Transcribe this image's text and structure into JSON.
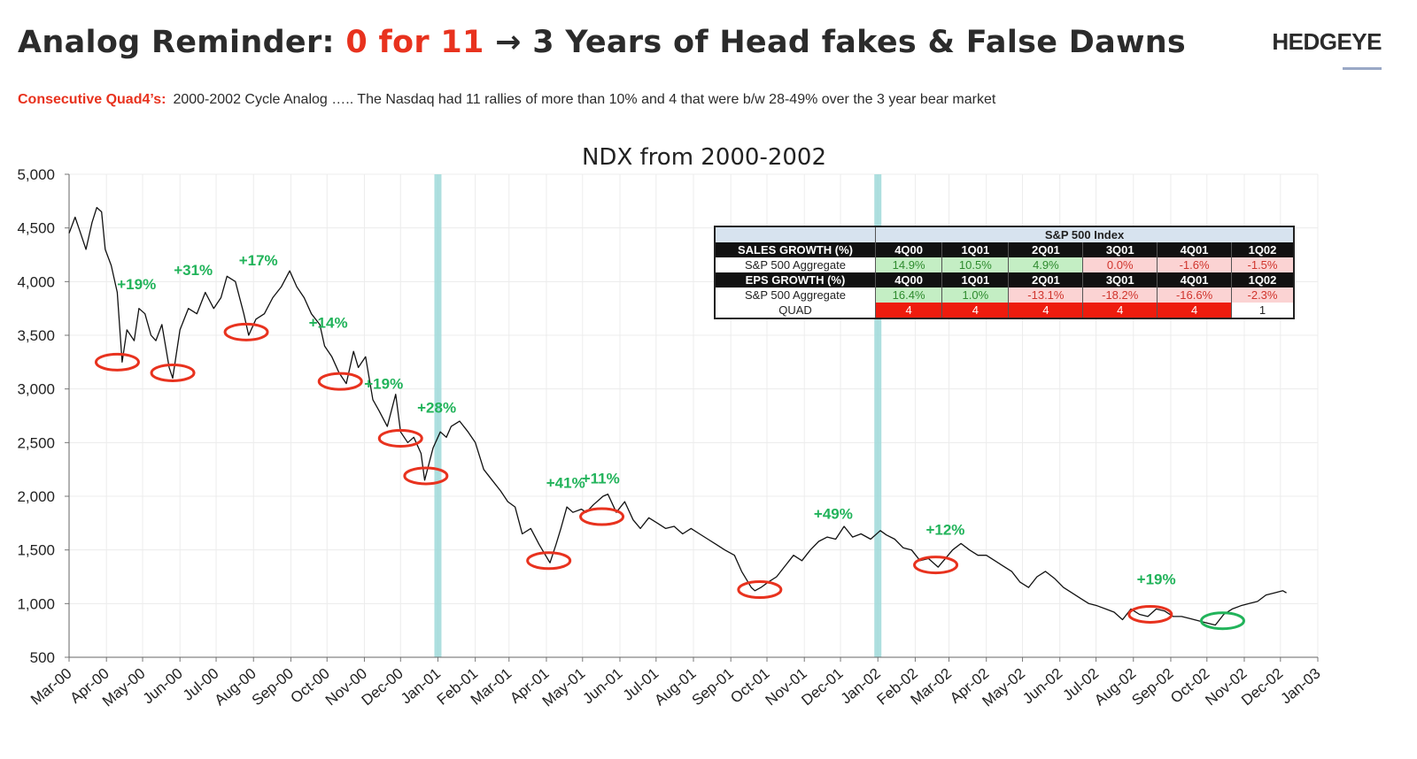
{
  "header": {
    "title_prefix": "Analog Reminder: ",
    "title_highlight": "0 for 11",
    "title_suffix": " → 3 Years of Head fakes & False Dawns",
    "logo": "HEDGEYE",
    "subtitle_label": "Consecutive Quad4’s:",
    "subtitle_text": "2000-2002 Cycle Analog ….. The Nasdaq had 11 rallies of more than 10% and 4 that were b/w 28-49% over the 3 year bear market"
  },
  "colors": {
    "rally_green": "#21b35a",
    "trough_red": "#e8321e",
    "final_trough_green": "#21b35a",
    "quarter_band": "#9fd9d9",
    "positive_cell": "#c4eec4",
    "negative_cell": "#fbd3d3",
    "quad4_cell": "#ee1c0e"
  },
  "chart_data": {
    "type": "line",
    "title": "NDX from 2000-2002",
    "xlabel": "",
    "ylabel": "",
    "ylim": [
      500,
      5000
    ],
    "yticks": [
      "500",
      "1,000",
      "1,500",
      "2,000",
      "2,500",
      "3,000",
      "3,500",
      "4,000",
      "4,500",
      "5,000"
    ],
    "xticks": [
      "Mar-00",
      "Apr-00",
      "May-00",
      "Jun-00",
      "Jul-00",
      "Aug-00",
      "Sep-00",
      "Oct-00",
      "Nov-00",
      "Dec-00",
      "Jan-01",
      "Feb-01",
      "Mar-01",
      "Apr-01",
      "May-01",
      "Jun-01",
      "Jul-01",
      "Aug-01",
      "Sep-01",
      "Oct-01",
      "Nov-01",
      "Dec-01",
      "Jan-02",
      "Feb-02",
      "Mar-02",
      "Apr-02",
      "May-02",
      "Jun-02",
      "Jul-02",
      "Aug-02",
      "Sep-02",
      "Oct-02",
      "Nov-02",
      "Dec-02",
      "Jan-03"
    ],
    "grid": true,
    "series": [
      {
        "points": [
          [
            "2000-03-01",
            4450
          ],
          [
            "2000-03-06",
            4600
          ],
          [
            "2000-03-10",
            4470
          ],
          [
            "2000-03-15",
            4300
          ],
          [
            "2000-03-20",
            4550
          ],
          [
            "2000-03-24",
            4690
          ],
          [
            "2000-03-28",
            4650
          ],
          [
            "2000-03-31",
            4300
          ],
          [
            "2000-04-05",
            4150
          ],
          [
            "2000-04-10",
            3900
          ],
          [
            "2000-04-14",
            3250
          ],
          [
            "2000-04-18",
            3550
          ],
          [
            "2000-04-24",
            3450
          ],
          [
            "2000-04-28",
            3750
          ],
          [
            "2000-05-03",
            3700
          ],
          [
            "2000-05-08",
            3500
          ],
          [
            "2000-05-12",
            3450
          ],
          [
            "2000-05-17",
            3600
          ],
          [
            "2000-05-23",
            3200
          ],
          [
            "2000-05-26",
            3100
          ],
          [
            "2000-06-01",
            3550
          ],
          [
            "2000-06-08",
            3750
          ],
          [
            "2000-06-15",
            3700
          ],
          [
            "2000-06-22",
            3900
          ],
          [
            "2000-06-29",
            3750
          ],
          [
            "2000-07-05",
            3850
          ],
          [
            "2000-07-10",
            4050
          ],
          [
            "2000-07-17",
            4000
          ],
          [
            "2000-07-24",
            3700
          ],
          [
            "2000-07-28",
            3500
          ],
          [
            "2000-08-03",
            3650
          ],
          [
            "2000-08-10",
            3700
          ],
          [
            "2000-08-17",
            3850
          ],
          [
            "2000-08-24",
            3950
          ],
          [
            "2000-08-31",
            4100
          ],
          [
            "2000-09-06",
            3950
          ],
          [
            "2000-09-12",
            3850
          ],
          [
            "2000-09-18",
            3700
          ],
          [
            "2000-09-25",
            3600
          ],
          [
            "2000-09-29",
            3400
          ],
          [
            "2000-10-05",
            3300
          ],
          [
            "2000-10-11",
            3150
          ],
          [
            "2000-10-17",
            3050
          ],
          [
            "2000-10-23",
            3350
          ],
          [
            "2000-10-27",
            3200
          ],
          [
            "2000-11-02",
            3300
          ],
          [
            "2000-11-08",
            2900
          ],
          [
            "2000-11-13",
            2800
          ],
          [
            "2000-11-20",
            2650
          ],
          [
            "2000-11-27",
            2950
          ],
          [
            "2000-12-01",
            2600
          ],
          [
            "2000-12-07",
            2500
          ],
          [
            "2000-12-12",
            2550
          ],
          [
            "2000-12-18",
            2400
          ],
          [
            "2000-12-21",
            2150
          ],
          [
            "2000-12-28",
            2450
          ],
          [
            "2001-01-03",
            2600
          ],
          [
            "2001-01-08",
            2550
          ],
          [
            "2001-01-12",
            2650
          ],
          [
            "2001-01-19",
            2700
          ],
          [
            "2001-01-26",
            2600
          ],
          [
            "2001-02-01",
            2500
          ],
          [
            "2001-02-08",
            2250
          ],
          [
            "2001-02-15",
            2150
          ],
          [
            "2001-02-22",
            2050
          ],
          [
            "2001-02-28",
            1950
          ],
          [
            "2001-03-06",
            1900
          ],
          [
            "2001-03-12",
            1650
          ],
          [
            "2001-03-19",
            1700
          ],
          [
            "2001-03-26",
            1550
          ],
          [
            "2001-04-04",
            1380
          ],
          [
            "2001-04-09",
            1550
          ],
          [
            "2001-04-13",
            1700
          ],
          [
            "2001-04-18",
            1900
          ],
          [
            "2001-04-23",
            1850
          ],
          [
            "2001-04-30",
            1880
          ],
          [
            "2001-05-04",
            1850
          ],
          [
            "2001-05-10",
            1920
          ],
          [
            "2001-05-18",
            2000
          ],
          [
            "2001-05-22",
            2020
          ],
          [
            "2001-05-29",
            1850
          ],
          [
            "2001-06-05",
            1950
          ],
          [
            "2001-06-12",
            1780
          ],
          [
            "2001-06-18",
            1700
          ],
          [
            "2001-06-25",
            1800
          ],
          [
            "2001-07-02",
            1750
          ],
          [
            "2001-07-09",
            1700
          ],
          [
            "2001-07-16",
            1720
          ],
          [
            "2001-07-23",
            1650
          ],
          [
            "2001-07-30",
            1700
          ],
          [
            "2001-08-06",
            1650
          ],
          [
            "2001-08-13",
            1600
          ],
          [
            "2001-08-20",
            1550
          ],
          [
            "2001-08-27",
            1500
          ],
          [
            "2001-09-04",
            1450
          ],
          [
            "2001-09-10",
            1300
          ],
          [
            "2001-09-18",
            1150
          ],
          [
            "2001-09-21",
            1120
          ],
          [
            "2001-09-26",
            1150
          ],
          [
            "2001-10-02",
            1200
          ],
          [
            "2001-10-09",
            1250
          ],
          [
            "2001-10-16",
            1350
          ],
          [
            "2001-10-23",
            1450
          ],
          [
            "2001-10-30",
            1400
          ],
          [
            "2001-11-06",
            1500
          ],
          [
            "2001-11-13",
            1580
          ],
          [
            "2001-11-20",
            1620
          ],
          [
            "2001-11-27",
            1600
          ],
          [
            "2001-12-04",
            1720
          ],
          [
            "2001-12-11",
            1620
          ],
          [
            "2001-12-18",
            1650
          ],
          [
            "2001-12-26",
            1600
          ],
          [
            "2002-01-03",
            1680
          ],
          [
            "2002-01-08",
            1640
          ],
          [
            "2002-01-15",
            1600
          ],
          [
            "2002-01-22",
            1520
          ],
          [
            "2002-01-29",
            1500
          ],
          [
            "2002-02-05",
            1400
          ],
          [
            "2002-02-12",
            1420
          ],
          [
            "2002-02-20",
            1340
          ],
          [
            "2002-02-26",
            1420
          ],
          [
            "2002-03-04",
            1500
          ],
          [
            "2002-03-11",
            1560
          ],
          [
            "2002-03-18",
            1500
          ],
          [
            "2002-03-25",
            1450
          ],
          [
            "2002-04-01",
            1450
          ],
          [
            "2002-04-08",
            1400
          ],
          [
            "2002-04-15",
            1350
          ],
          [
            "2002-04-22",
            1300
          ],
          [
            "2002-04-29",
            1200
          ],
          [
            "2002-05-06",
            1150
          ],
          [
            "2002-05-13",
            1250
          ],
          [
            "2002-05-20",
            1300
          ],
          [
            "2002-05-28",
            1230
          ],
          [
            "2002-06-04",
            1150
          ],
          [
            "2002-06-11",
            1100
          ],
          [
            "2002-06-18",
            1050
          ],
          [
            "2002-06-25",
            1000
          ],
          [
            "2002-07-02",
            980
          ],
          [
            "2002-07-09",
            950
          ],
          [
            "2002-07-16",
            920
          ],
          [
            "2002-07-23",
            850
          ],
          [
            "2002-07-30",
            950
          ],
          [
            "2002-08-06",
            900
          ],
          [
            "2002-08-13",
            880
          ],
          [
            "2002-08-20",
            950
          ],
          [
            "2002-08-27",
            930
          ],
          [
            "2002-09-03",
            880
          ],
          [
            "2002-09-10",
            880
          ],
          [
            "2002-09-17",
            860
          ],
          [
            "2002-09-24",
            840
          ],
          [
            "2002-10-01",
            820
          ],
          [
            "2002-10-08",
            800
          ],
          [
            "2002-10-15",
            900
          ],
          [
            "2002-10-22",
            950
          ],
          [
            "2002-10-29",
            980
          ],
          [
            "2002-11-05",
            1000
          ],
          [
            "2002-11-12",
            1020
          ],
          [
            "2002-11-19",
            1080
          ],
          [
            "2002-11-26",
            1100
          ],
          [
            "2002-12-03",
            1120
          ],
          [
            "2002-12-06",
            1100
          ]
        ]
      }
    ],
    "shaded_bands": [
      "2001-01-01",
      "2002-01-01"
    ],
    "annotations": [
      {
        "label": "+19%",
        "x": "2000-04-26",
        "y": 3930
      },
      {
        "label": "+31%",
        "x": "2000-06-12",
        "y": 4060
      },
      {
        "label": "+17%",
        "x": "2000-08-05",
        "y": 4150
      },
      {
        "label": "+14%",
        "x": "2000-10-02",
        "y": 3570
      },
      {
        "label": "+19%",
        "x": "2000-11-17",
        "y": 3000
      },
      {
        "label": "+28%",
        "x": "2000-12-31",
        "y": 2780
      },
      {
        "label": "+41%",
        "x": "2001-04-17",
        "y": 2080
      },
      {
        "label": "+11%",
        "x": "2001-05-16",
        "y": 2120
      },
      {
        "label": "+49%",
        "x": "2001-11-25",
        "y": 1790
      },
      {
        "label": "+12%",
        "x": "2002-02-26",
        "y": 1640
      },
      {
        "label": "+19%",
        "x": "2002-08-20",
        "y": 1180
      }
    ],
    "troughs": [
      {
        "x": "2000-04-10",
        "y": 3250,
        "color": "red"
      },
      {
        "x": "2000-05-26",
        "y": 3150,
        "color": "red"
      },
      {
        "x": "2000-07-26",
        "y": 3530,
        "color": "red"
      },
      {
        "x": "2000-10-12",
        "y": 3070,
        "color": "red"
      },
      {
        "x": "2000-12-01",
        "y": 2540,
        "color": "red"
      },
      {
        "x": "2000-12-22",
        "y": 2190,
        "color": "red"
      },
      {
        "x": "2001-04-03",
        "y": 1400,
        "color": "red"
      },
      {
        "x": "2001-05-17",
        "y": 1810,
        "color": "red"
      },
      {
        "x": "2001-09-25",
        "y": 1130,
        "color": "red"
      },
      {
        "x": "2002-02-18",
        "y": 1360,
        "color": "red"
      },
      {
        "x": "2002-08-15",
        "y": 900,
        "color": "red"
      },
      {
        "x": "2002-10-14",
        "y": 840,
        "color": "green"
      }
    ]
  },
  "table": {
    "title": "S&P 500 Index",
    "rows": [
      {
        "label": "SALES GROWTH (%)",
        "style": "black",
        "cells": [
          "4Q00",
          "1Q01",
          "2Q01",
          "3Q01",
          "4Q01",
          "1Q02"
        ]
      },
      {
        "label": "S&P 500 Aggregate",
        "style": "values",
        "cells": [
          "14.9%",
          "10.5%",
          "4.9%",
          "0.0%",
          "-1.6%",
          "-1.5%"
        ]
      },
      {
        "label": "EPS GROWTH (%)",
        "style": "black",
        "cells": [
          "4Q00",
          "1Q01",
          "2Q01",
          "3Q01",
          "4Q01",
          "1Q02"
        ]
      },
      {
        "label": "S&P 500 Aggregate",
        "style": "values",
        "cells": [
          "16.4%",
          "1.0%",
          "-13.1%",
          "-18.2%",
          "-16.6%",
          "-2.3%"
        ]
      },
      {
        "label": "QUAD",
        "style": "quad",
        "cells": [
          "4",
          "4",
          "4",
          "4",
          "4",
          "1"
        ]
      }
    ]
  }
}
